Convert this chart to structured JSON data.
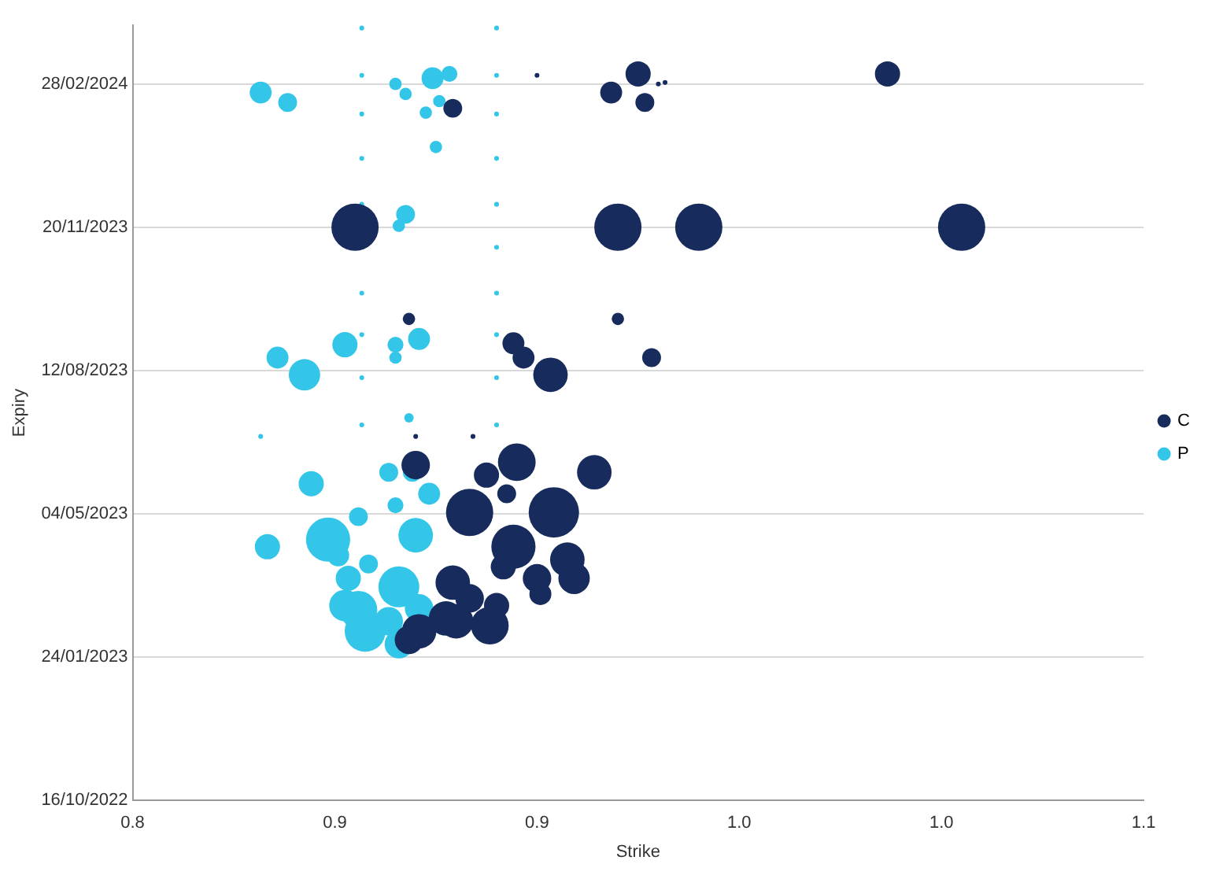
{
  "chart_data": {
    "type": "bubble",
    "orientation": "horizontal",
    "xlabel": "Strike",
    "ylabel": "Expiry",
    "xlim": [
      0.8,
      1.1
    ],
    "xticks": [
      0.8,
      {
        "value": 0.86,
        "label": "0.9"
      },
      {
        "value": 0.92,
        "label": "0.9"
      },
      {
        "value": 0.98,
        "label": "1.0"
      },
      {
        "value": 1.04,
        "label": "1.0"
      },
      1.1
    ],
    "ylim": [
      "2022-10-16",
      "2024-04-09"
    ],
    "yticks": [
      {
        "value": "2022-10-16",
        "label": "16/10/2022"
      },
      {
        "value": "2023-01-24",
        "label": "24/01/2023"
      },
      {
        "value": "2023-05-04",
        "label": "04/05/2023"
      },
      {
        "value": "2023-08-12",
        "label": "12/08/2023"
      },
      {
        "value": "2023-11-20",
        "label": "20/11/2023"
      },
      {
        "value": "2024-02-28",
        "label": "28/02/2024"
      }
    ],
    "grid": "y",
    "legend": "right",
    "series": [
      {
        "name": "C",
        "color": "#172b5c",
        "values": [
          1.024,
          0.95,
          0.942,
          0.952,
          0.958,
          0.956,
          0.92,
          0.895,
          0.866,
          0.944,
          0.968,
          1.046,
          0.882,
          0.944,
          0.913,
          0.916,
          0.924,
          0.954,
          0.884,
          0.901,
          0.884,
          0.914,
          0.937,
          0.905,
          0.9,
          0.925,
          0.913,
          0.929,
          0.931,
          0.92,
          0.895,
          0.896,
          0.9,
          0.906,
          0.885,
          0.893,
          0.908,
          0.921,
          0.911,
          0.91,
          0.882
        ],
        "x": [
          "2024-03-06",
          "2024-03-06",
          "2024-02-22",
          "2024-02-15",
          "2024-02-29",
          "2024-02-28",
          "2024-03-05",
          "2024-02-11",
          "2023-11-20",
          "2023-11-20",
          "2023-11-20",
          "2023-11-20",
          "2023-09-17",
          "2023-09-17",
          "2023-08-31",
          "2023-08-21",
          "2023-08-09",
          "2023-08-21",
          "2023-06-27",
          "2023-06-27",
          "2023-06-07",
          "2023-06-09",
          "2023-06-02",
          "2023-05-31",
          "2023-05-05",
          "2023-05-05",
          "2023-04-11",
          "2023-04-02",
          "2023-03-20",
          "2023-03-20",
          "2023-03-17",
          "2023-02-18",
          "2023-03-06",
          "2023-02-15",
          "2023-02-11",
          "2023-02-20",
          "2023-03-01",
          "2023-03-09",
          "2023-05-18",
          "2023-03-28",
          "2023-02-05"
        ],
        "sizes": [
          0.25,
          0.25,
          0.19,
          0.14,
          0.009,
          0.009,
          0.009,
          0.14,
          0.88,
          0.88,
          0.88,
          0.88,
          0.06,
          0.06,
          0.19,
          0.19,
          0.47,
          0.14,
          0.009,
          0.009,
          0.32,
          0.56,
          0.47,
          0.25,
          0.88,
          1,
          0.77,
          0.47,
          0.39,
          0.32,
          0.47,
          0.47,
          0.32,
          0.56,
          0.47,
          0.47,
          0.25,
          0.19,
          0.14,
          0.25,
          0.32
        ]
      },
      {
        "name": "P",
        "color": "#33c6e8",
        "values": [
          0.838,
          0.846,
          0.889,
          0.894,
          0.878,
          0.881,
          0.891,
          0.887,
          0.89,
          0.881,
          0.879,
          0.843,
          0.851,
          0.863,
          0.878,
          0.878,
          0.885,
          0.882,
          0.838,
          0.853,
          0.84,
          0.858,
          0.876,
          0.883,
          0.888,
          0.867,
          0.878,
          0.884,
          0.87,
          0.879,
          0.864,
          0.867,
          0.869,
          0.863,
          0.876,
          0.885,
          0.879,
          0.861,
          0.868,
          0.868,
          0.868,
          0.868,
          0.868,
          0.868,
          0.868,
          0.868,
          0.868,
          0.868,
          0.908,
          0.908,
          0.908,
          0.908,
          0.908,
          0.908,
          0.908,
          0.908,
          0.908,
          0.908
        ],
        "x": [
          "2024-02-22",
          "2024-02-15",
          "2024-03-03",
          "2024-03-06",
          "2024-02-28",
          "2024-02-21",
          "2024-02-16",
          "2024-02-08",
          "2024-01-15",
          "2023-11-29",
          "2023-11-21",
          "2023-08-21",
          "2023-08-09",
          "2023-08-30",
          "2023-08-30",
          "2023-08-21",
          "2023-09-03",
          "2023-07-10",
          "2023-06-27",
          "2023-05-25",
          "2023-04-11",
          "2023-04-16",
          "2023-06-02",
          "2023-06-02",
          "2023-05-18",
          "2023-05-02",
          "2023-05-10",
          "2023-04-19",
          "2023-03-30",
          "2023-03-14",
          "2023-03-20",
          "2023-02-26",
          "2023-02-11",
          "2023-03-01",
          "2023-02-18",
          "2023-02-27",
          "2023-02-02",
          "2023-04-05",
          "2024-04-07",
          "2024-03-05",
          "2024-02-07",
          "2024-01-07",
          "2023-12-06",
          "2023-11-06",
          "2023-10-05",
          "2023-09-06",
          "2023-08-07",
          "2023-07-05",
          "2024-04-07",
          "2024-03-05",
          "2024-02-07",
          "2024-01-07",
          "2023-12-06",
          "2023-11-06",
          "2023-10-05",
          "2023-09-06",
          "2023-08-07",
          "2023-07-05"
        ],
        "sizes": [
          0.19,
          0.14,
          0.19,
          0.1,
          0.06,
          0.06,
          0.06,
          0.06,
          0.06,
          0.14,
          0.06,
          0.19,
          0.39,
          0.25,
          0.1,
          0.06,
          0.19,
          0.035,
          0.009,
          0.25,
          0.25,
          0.77,
          0.14,
          0.14,
          0.19,
          0.14,
          0.1,
          0.47,
          0.14,
          0.66,
          0.25,
          0.56,
          0.66,
          0.39,
          0.32,
          0.32,
          0.32,
          0.19,
          0.009,
          0.009,
          0.009,
          0.009,
          0.009,
          0.009,
          0.009,
          0.009,
          0.009,
          0.009,
          0.009,
          0.009,
          0.009,
          0.009,
          0.009,
          0.009,
          0.009,
          0.009,
          0.009,
          0.009
        ]
      }
    ]
  }
}
